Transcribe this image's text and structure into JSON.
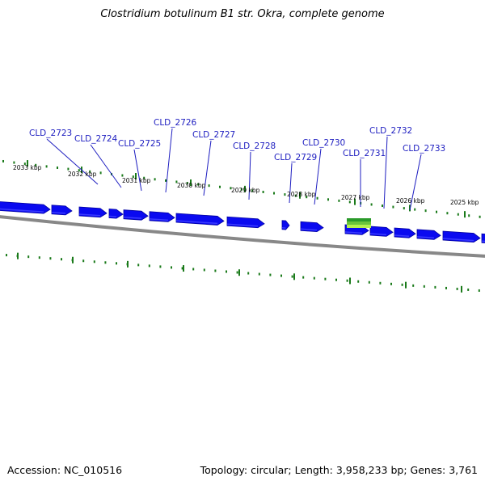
{
  "title": "Clostridium botulinum B1 str. Okra, complete genome",
  "footer": {
    "accession": "Accession: NC_010516",
    "stats": "Topology: circular; Length: 3,958,233 bp; Genes: 3,761"
  },
  "colors": {
    "gene_arrow": "#0a0af0",
    "gene_arrow_dark": "#0000a0",
    "tick_green": "#1a7a1a",
    "backbone": "#888888",
    "label_blue": "#1d1dc0",
    "highlight_green": "#2a9a2a",
    "highlight_lime": "#b4f050"
  },
  "kbp_labels": [
    "2033 kbp",
    "2032 kbp",
    "2031 kbp",
    "2030 kbp",
    "2029 kbp",
    "2028 kbp",
    "2027 kbp",
    "2026 kbp",
    "2025 kbp"
  ],
  "gene_labels": [
    "CLD_2723",
    "CLD_2724",
    "CLD_2725",
    "CLD_2726",
    "CLD_2727",
    "CLD_2728",
    "CLD_2729",
    "CLD_2730",
    "CLD_2731",
    "CLD_2732",
    "CLD_2733"
  ]
}
